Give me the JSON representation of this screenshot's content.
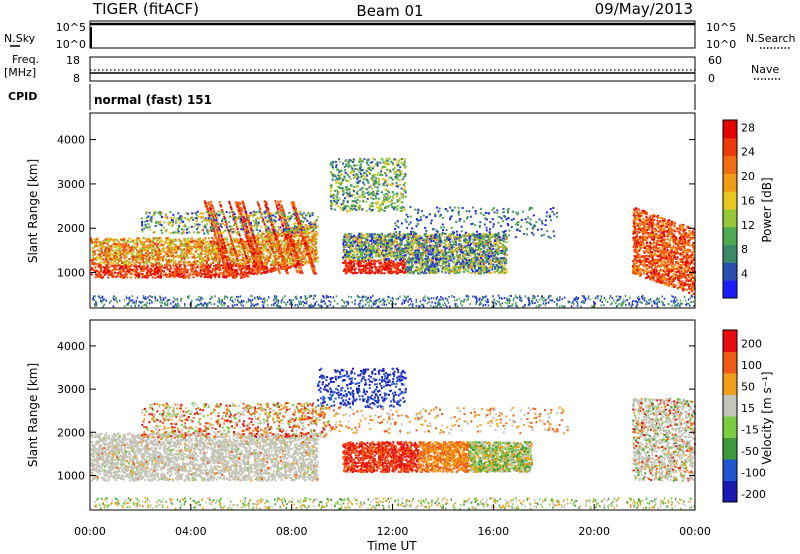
{
  "header": {
    "station": "TIGER (fitACF)",
    "beam": "Beam 01",
    "date": "09/May/2013"
  },
  "panels": {
    "sky_search": {
      "left_label": "N.Sky",
      "right_label": "N.Search",
      "left_ticks": [
        "10^5",
        "10^0"
      ],
      "right_ticks": [
        "10^5",
        "10^0"
      ]
    },
    "freq_nave": {
      "left_label_1": "Freq.",
      "left_label_2": "[MHz]",
      "right_label": "Nave",
      "left_ticks": [
        "18",
        "8"
      ],
      "right_ticks": [
        "60",
        "0"
      ]
    },
    "cpid": {
      "label": "CPID",
      "text": "normal (fast) 151"
    }
  },
  "chart_data": [
    {
      "type": "heatmap",
      "name": "power",
      "ylabel": "Slant Range [km]",
      "xlabel": "",
      "ylim": [
        200,
        4600
      ],
      "yticks": [
        "1000",
        "2000",
        "3000",
        "4000"
      ],
      "colorbar": {
        "label": "Power [dB]",
        "ticks": [
          "4",
          "8",
          "12",
          "16",
          "20",
          "24",
          "28"
        ],
        "colors": [
          "#1c1cff",
          "#2a4fb0",
          "#3a8a6a",
          "#4caa52",
          "#96c83a",
          "#e6c81e",
          "#f09a16",
          "#f26c10",
          "#ee3a0a",
          "#e40000"
        ]
      },
      "features": [
        {
          "label": "ground-scatter band",
          "t_start": 0,
          "t_end": 9,
          "range_low": 900,
          "range_high": 1800,
          "level": "high"
        },
        {
          "label": "ionospheric streaks",
          "t_start": 6,
          "t_end": 9.2,
          "range_low": 900,
          "range_high": 3400,
          "level": "very high"
        },
        {
          "label": "midday band",
          "t_start": 10,
          "t_end": 16.5,
          "range_low": 1000,
          "range_high": 2000,
          "level": "medium"
        },
        {
          "label": "evening arc",
          "t_start": 21.5,
          "t_end": 24,
          "range_low": 900,
          "range_high": 2500,
          "level": "high"
        },
        {
          "label": "near-range scatter",
          "t_start": 0,
          "t_end": 24,
          "range_low": 250,
          "range_high": 500,
          "level": "low"
        }
      ]
    },
    {
      "type": "heatmap",
      "name": "velocity",
      "ylabel": "Slant Range [km]",
      "xlabel": "Time UT",
      "ylim": [
        200,
        4600
      ],
      "yticks": [
        "1000",
        "2000",
        "3000",
        "4000"
      ],
      "xticks": [
        "00:00",
        "04:00",
        "08:00",
        "12:00",
        "16:00",
        "20:00",
        "00:00"
      ],
      "colorbar": {
        "label": "Velocity [m s⁻¹]",
        "ticks": [
          "200",
          "100",
          "50",
          "15",
          "-15",
          "-50",
          "-100",
          "-200"
        ],
        "colors": [
          "#1a1ab4",
          "#2255d0",
          "#3f9a3a",
          "#7acc40",
          "#c4c4b8",
          "#f0a018",
          "#f05a14",
          "#e80c0c"
        ]
      },
      "features": [
        {
          "label": "grey ground scatter",
          "t_start": 0,
          "t_end": 9,
          "range_low": 900,
          "range_high": 2000,
          "velocity": 0
        },
        {
          "label": "red negative band",
          "t_start": 10,
          "t_end": 17.5,
          "range_low": 1100,
          "range_high": 1800,
          "velocity": -180
        },
        {
          "label": "blue positive patch",
          "t_start": 9,
          "t_end": 12.5,
          "range_low": 2600,
          "range_high": 3500,
          "velocity": 180
        },
        {
          "label": "evening grey/green",
          "t_start": 21.5,
          "t_end": 24,
          "range_low": 900,
          "range_high": 2800,
          "velocity": 20
        }
      ]
    }
  ]
}
